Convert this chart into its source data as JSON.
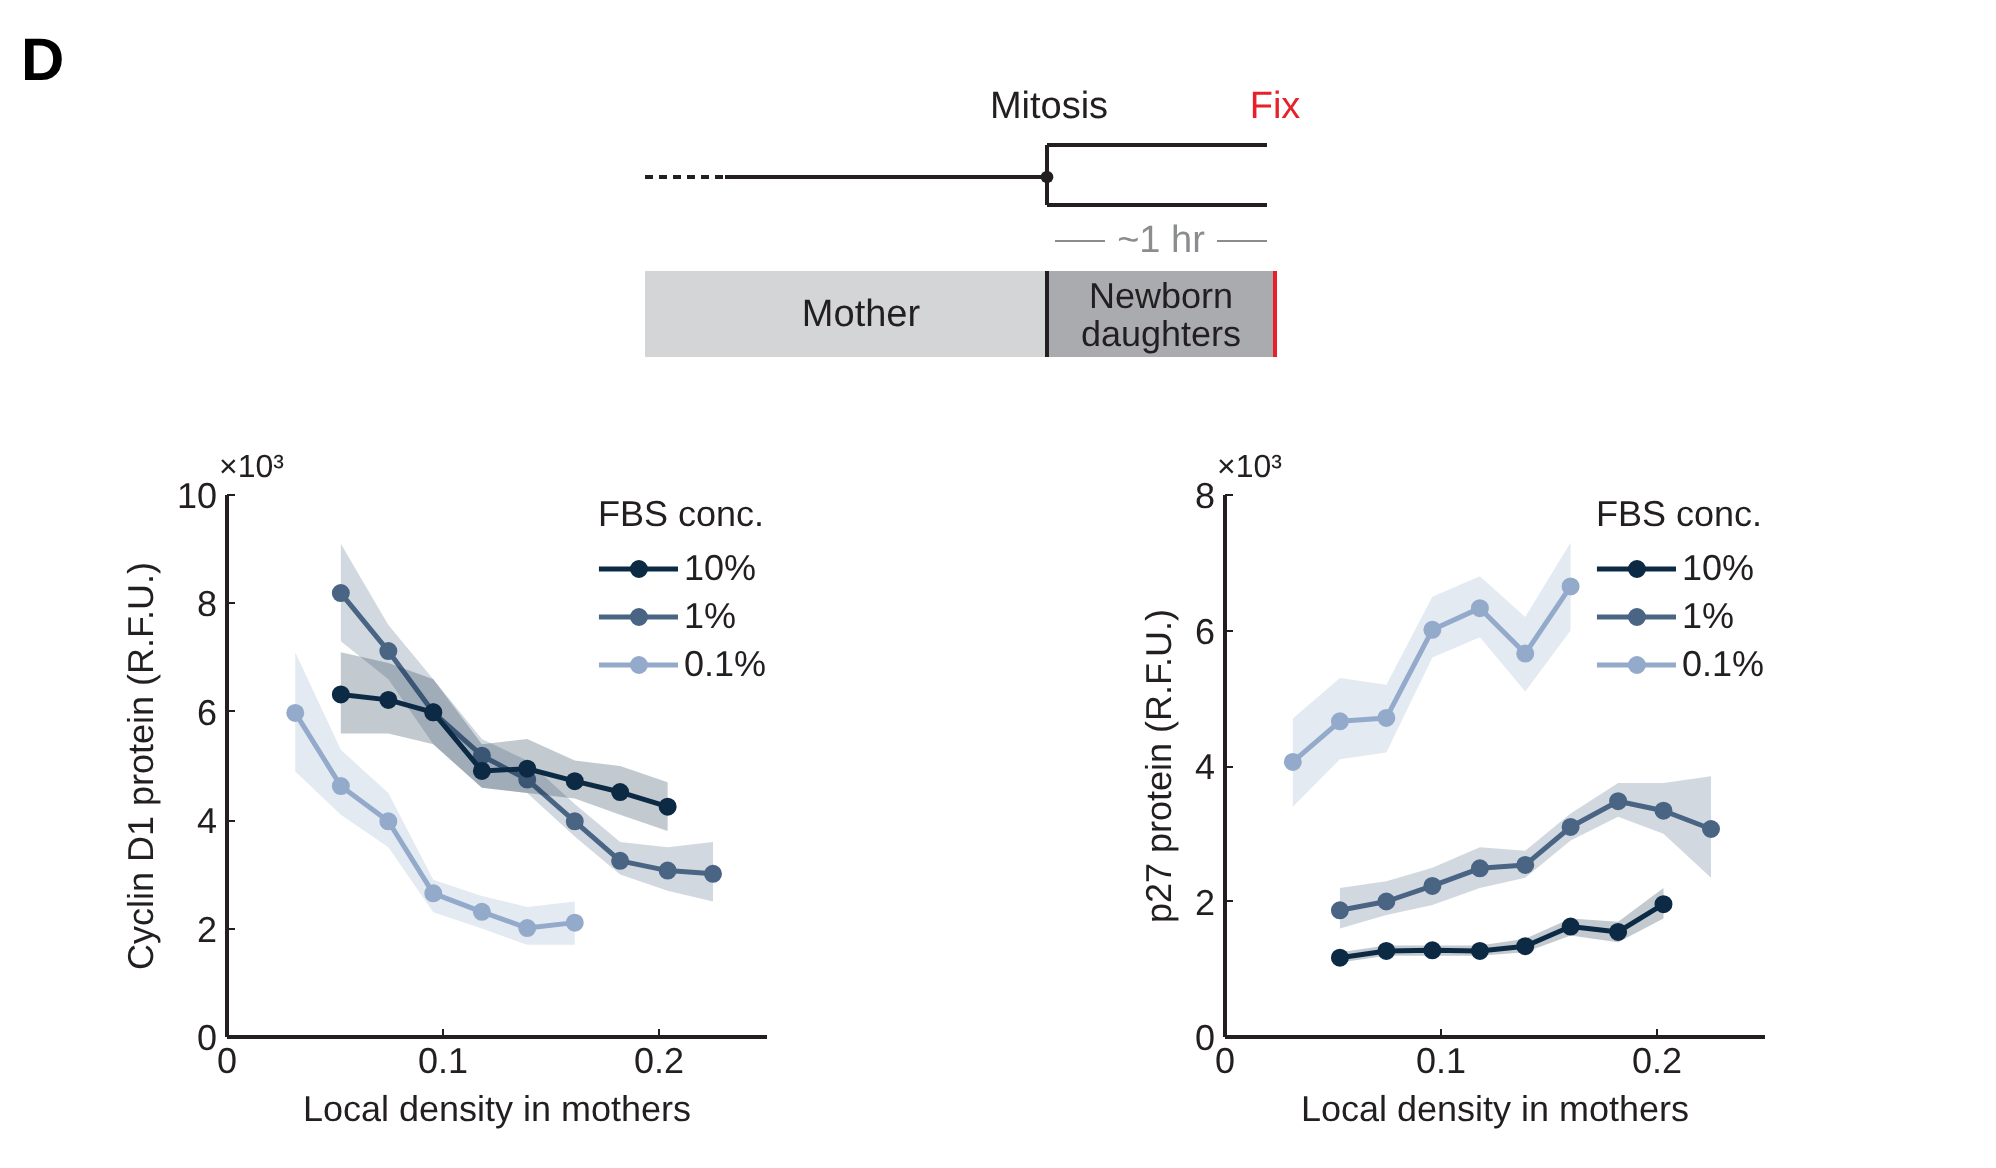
{
  "chart_data": [
    {
      "type": "other",
      "annotations": [
        "D",
        "Mitosis",
        "Fix",
        "~1 hr",
        "Mother",
        "Newborn\ndaughters"
      ]
    },
    {
      "type": "line",
      "xlabel": "Local density in mothers",
      "ylabel": "Cyclin D1 protein (R.F.U.)",
      "legend_title": "FBS conc.",
      "legend": "top right",
      "marker": "circle",
      "line_style": "solid",
      "annotations": [
        "×10³"
      ],
      "xlim": [
        0,
        0.25
      ],
      "xticks": [
        0,
        0.1,
        0.2
      ],
      "ylim": [
        0,
        10
      ],
      "yticks": [
        0,
        2,
        4,
        6,
        8,
        10
      ],
      "series": [
        {
          "name": "10%",
          "color": "#0d2a45",
          "x": [
            0.0527,
            0.0747,
            0.0955,
            0.118,
            0.139,
            0.161,
            0.182,
            0.204
          ],
          "values": [
            6.32,
            6.22,
            5.99,
            4.91,
            4.95,
            4.72,
            4.52,
            4.25
          ],
          "lower": [
            5.6,
            5.6,
            5.4,
            4.6,
            4.5,
            4.4,
            4.1,
            3.8
          ],
          "upper": [
            7.1,
            6.9,
            6.6,
            5.4,
            5.5,
            5.1,
            5.0,
            4.7
          ]
        },
        {
          "name": "1%",
          "color": "#4a6484",
          "x": [
            0.0527,
            0.0747,
            0.0955,
            0.118,
            0.139,
            0.161,
            0.182,
            0.204,
            0.225
          ],
          "values": [
            8.19,
            7.12,
            5.99,
            5.19,
            4.75,
            3.98,
            3.25,
            3.07,
            3.01
          ],
          "lower": [
            7.3,
            6.6,
            5.4,
            4.6,
            4.5,
            3.7,
            3.0,
            2.7,
            2.5
          ],
          "upper": [
            9.1,
            7.6,
            6.6,
            5.5,
            5.1,
            4.3,
            3.6,
            3.5,
            3.6
          ]
        },
        {
          "name": "0.1%",
          "color": "#93aacb",
          "x": [
            0.0316,
            0.0527,
            0.0747,
            0.0955,
            0.118,
            0.139,
            0.161
          ],
          "values": [
            5.98,
            4.63,
            3.98,
            2.65,
            2.31,
            2.01,
            2.11
          ],
          "lower": [
            4.9,
            4.1,
            3.5,
            2.3,
            2.0,
            1.7,
            1.7
          ],
          "upper": [
            7.1,
            5.3,
            4.5,
            2.9,
            2.6,
            2.4,
            2.5
          ]
        }
      ]
    },
    {
      "type": "line",
      "xlabel": "Local density in mothers",
      "ylabel": "p27 protein (R.F.U.)",
      "legend_title": "FBS conc.",
      "legend": "top right",
      "marker": "circle",
      "line_style": "solid",
      "annotations": [
        "×10³"
      ],
      "xlim": [
        0,
        0.25
      ],
      "xticks": [
        0,
        0.1,
        0.2
      ],
      "ylim": [
        0,
        8
      ],
      "yticks": [
        0,
        2,
        4,
        6,
        8
      ],
      "series": [
        {
          "name": "10%",
          "color": "#0d2a45",
          "x": [
            0.0532,
            0.0747,
            0.096,
            0.118,
            0.139,
            0.16,
            0.182,
            0.203
          ],
          "values": [
            1.17,
            1.27,
            1.28,
            1.27,
            1.34,
            1.63,
            1.55,
            1.96
          ],
          "lower": [
            1.1,
            1.2,
            1.2,
            1.2,
            1.25,
            1.5,
            1.4,
            1.75
          ],
          "upper": [
            1.25,
            1.35,
            1.35,
            1.35,
            1.45,
            1.75,
            1.7,
            2.2
          ]
        },
        {
          "name": "1%",
          "color": "#4a6484",
          "x": [
            0.0532,
            0.0747,
            0.096,
            0.118,
            0.139,
            0.16,
            0.182,
            0.203,
            0.225
          ],
          "values": [
            1.87,
            2.0,
            2.23,
            2.49,
            2.54,
            3.1,
            3.48,
            3.34,
            3.07
          ],
          "lower": [
            1.6,
            1.8,
            1.95,
            2.2,
            2.35,
            2.9,
            3.25,
            3.0,
            2.35
          ],
          "upper": [
            2.2,
            2.3,
            2.5,
            2.8,
            2.75,
            3.3,
            3.75,
            3.75,
            3.85
          ]
        },
        {
          "name": "0.1%",
          "color": "#93aacb",
          "x": [
            0.0314,
            0.0532,
            0.0747,
            0.096,
            0.118,
            0.139,
            0.16
          ],
          "values": [
            4.06,
            4.66,
            4.71,
            6.01,
            6.33,
            5.66,
            6.65
          ],
          "lower": [
            3.4,
            4.1,
            4.2,
            5.6,
            5.9,
            5.1,
            6.0
          ],
          "upper": [
            4.7,
            5.3,
            5.2,
            6.5,
            6.8,
            6.2,
            7.3
          ]
        }
      ]
    }
  ]
}
